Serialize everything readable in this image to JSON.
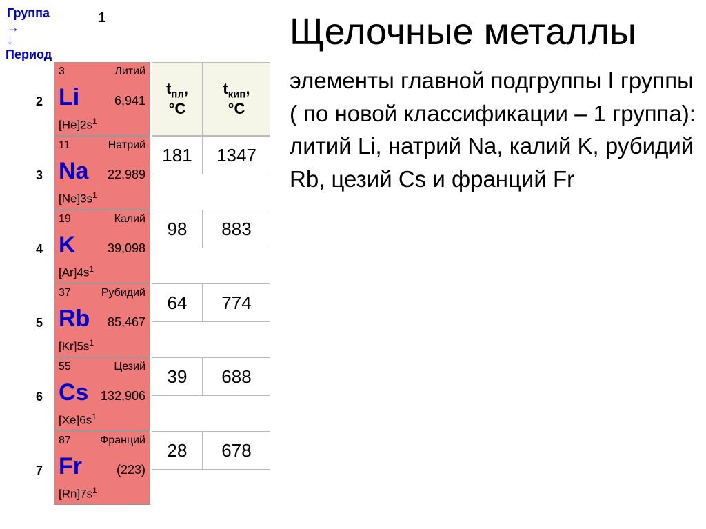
{
  "header": {
    "group_label": "Группа →",
    "period_label": "↓ Период",
    "group_number": "1"
  },
  "periods": [
    "2",
    "3",
    "4",
    "5",
    "6",
    "7"
  ],
  "elements": [
    {
      "num": "3",
      "name": "Литий",
      "sym": "Li",
      "mass": "6,941",
      "config": "[He]2s",
      "exp": "1"
    },
    {
      "num": "11",
      "name": "Натрий",
      "sym": "Na",
      "mass": "22,989",
      "config": "[Ne]3s",
      "exp": "1"
    },
    {
      "num": "19",
      "name": "Калий",
      "sym": "K",
      "mass": "39,098",
      "config": "[Ar]4s",
      "exp": "1"
    },
    {
      "num": "37",
      "name": "Рубидий",
      "sym": "Rb",
      "mass": "85,467",
      "config": "[Kr]5s",
      "exp": "1"
    },
    {
      "num": "55",
      "name": "Цезий",
      "sym": "Cs",
      "mass": "132,906",
      "config": "[Xe]6s",
      "exp": "1"
    },
    {
      "num": "87",
      "name": "Франций",
      "sym": "Fr",
      "mass": "(223)",
      "config": "[Rn]7s",
      "exp": "1"
    }
  ],
  "temp_headers": {
    "melt_label_1": "t",
    "melt_label_sub": "пл",
    "melt_label_2": ",",
    "boil_label_1": "t",
    "boil_label_sub": "кип",
    "boil_label_2": ",",
    "unit": "°C"
  },
  "temps": [
    {
      "melt": "181",
      "boil": "1347"
    },
    {
      "melt": "98",
      "boil": "883"
    },
    {
      "melt": "64",
      "boil": "774"
    },
    {
      "melt": "39",
      "boil": "688"
    },
    {
      "melt": "28",
      "boil": "678"
    }
  ],
  "title": "Щелочные металлы",
  "description": "элементы главной подгруппы I группы ( по новой классификации – 1 группа): литий Li, натрий Na, калий K, рубидий Rb, цезий Cs и франций Fr",
  "colors": {
    "element_bg": "#ef7a7a",
    "link_blue": "#0000cc",
    "header_bg": "#f5f5e8"
  }
}
